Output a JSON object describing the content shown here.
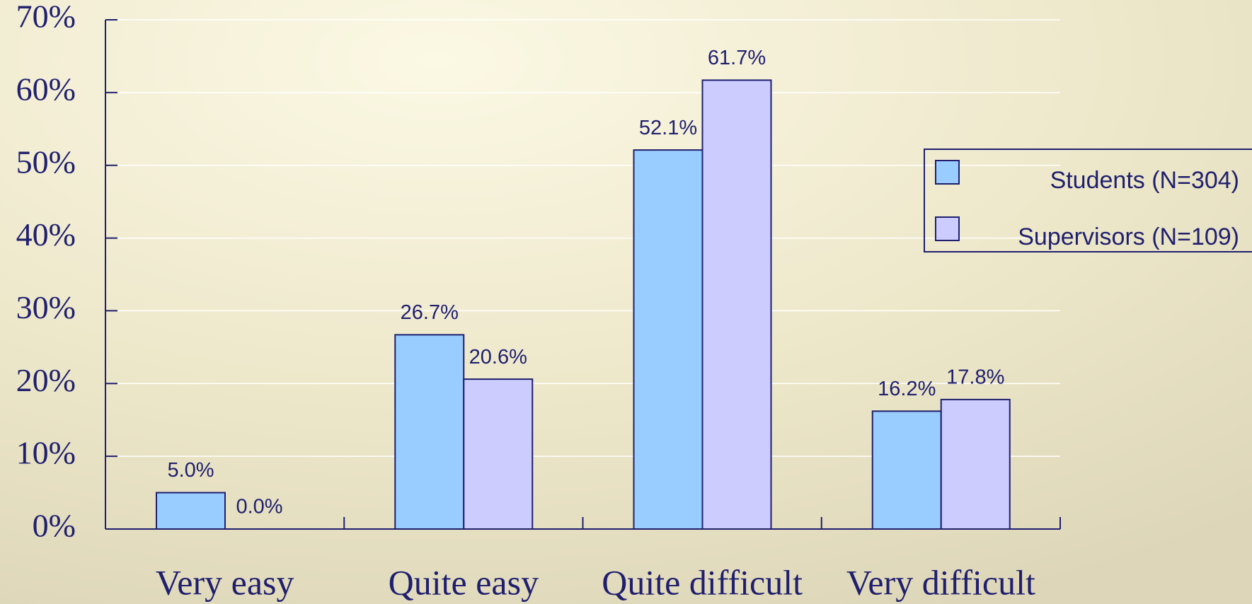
{
  "chart_data": {
    "type": "bar",
    "categories": [
      "Very easy",
      "Quite easy",
      "Quite difficult",
      "Very difficult"
    ],
    "series": [
      {
        "name": "Students (N=304)",
        "color": "#99ccff",
        "values": [
          5.0,
          26.7,
          52.1,
          16.2
        ],
        "value_labels": [
          "5.0%",
          "26.7%",
          "52.1%",
          "16.2%"
        ]
      },
      {
        "name": "Supervisors (N=109)",
        "color": "#ccccff",
        "values": [
          0.0,
          20.6,
          61.7,
          17.8
        ],
        "value_labels": [
          "0.0%",
          "20.6%",
          "61.7%",
          "17.8%"
        ]
      }
    ],
    "ylim": [
      0,
      70
    ],
    "yticks": [
      {
        "value": 0,
        "label": "0%"
      },
      {
        "value": 10,
        "label": "10%"
      },
      {
        "value": 20,
        "label": "20%"
      },
      {
        "value": 30,
        "label": "30%"
      },
      {
        "value": 40,
        "label": "40%"
      },
      {
        "value": 50,
        "label": "50%"
      },
      {
        "value": 60,
        "label": "60%"
      },
      {
        "value": 70,
        "label": "70%"
      }
    ],
    "grid": true,
    "legend": "right"
  }
}
